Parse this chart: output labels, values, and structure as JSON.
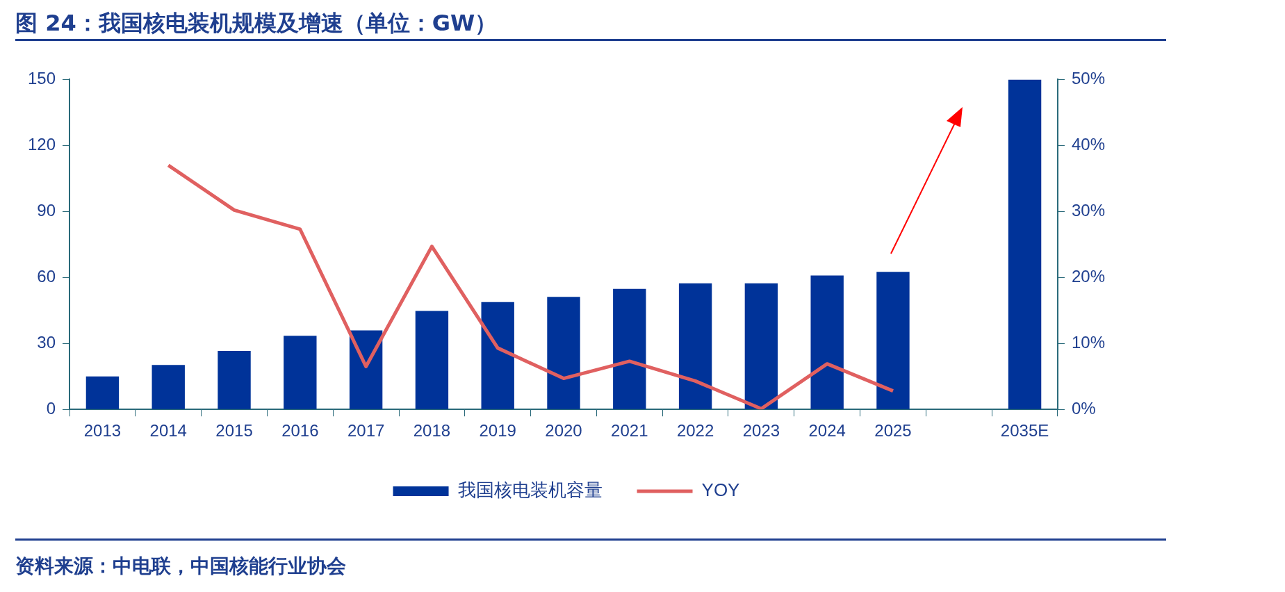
{
  "chart_data": {
    "type": "bar",
    "title": "图 24：我国核电装机规模及增速（单位：GW）",
    "categories": [
      "2013",
      "2014",
      "2015",
      "2016",
      "2017",
      "2018",
      "2019",
      "2020",
      "2021",
      "2022",
      "2023",
      "2024",
      "2025",
      null,
      "2035E"
    ],
    "series": [
      {
        "name": "我国核电装机容量",
        "color": "#003399",
        "values": [
          15,
          20.2,
          26.6,
          33.5,
          35.9,
          44.8,
          48.8,
          51.2,
          54.8,
          57.3,
          57.3,
          60.9,
          62.5,
          null,
          150
        ]
      },
      {
        "name": "YOY",
        "type": "line",
        "axis": "y2",
        "color": "#e06060",
        "values": [
          null,
          37,
          30.2,
          27.3,
          6.5,
          24.7,
          9.3,
          4.7,
          7.3,
          4.3,
          0.1,
          6.9,
          2.8,
          null,
          null
        ]
      }
    ],
    "ylim": [
      0,
      150
    ],
    "yticks": [
      0,
      30,
      60,
      90,
      120,
      150
    ],
    "y2lim": [
      0,
      50
    ],
    "y2ticks": [
      {
        "value": 0,
        "label": "0%"
      },
      {
        "value": 10,
        "label": "10%"
      },
      {
        "value": 20,
        "label": "20%"
      },
      {
        "value": 30,
        "label": "30%"
      },
      {
        "value": 40,
        "label": "40%"
      },
      {
        "value": 50,
        "label": "50%"
      }
    ],
    "grid": false,
    "legend": "bottom",
    "marker": "none",
    "annotations": [
      "资料来源：中电联，中国核能行业协会"
    ]
  }
}
